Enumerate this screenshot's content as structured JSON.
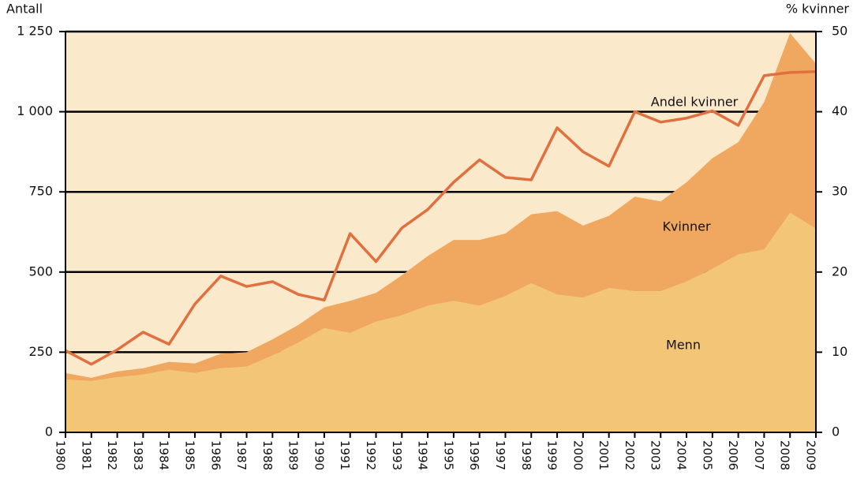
{
  "chart_data": {
    "type": "stacked_area_line",
    "ylabel": "Antall",
    "y2label": "% kvinner",
    "categories": [
      "1980",
      "1981",
      "1982",
      "1983",
      "1984",
      "1985",
      "1986",
      "1987",
      "1988",
      "1989",
      "1990",
      "1991",
      "1992",
      "1993",
      "1994",
      "1995",
      "1996",
      "1997",
      "1998",
      "1999",
      "2000",
      "2001",
      "2002",
      "2003",
      "2004",
      "2005",
      "2006",
      "2007",
      "2008",
      "2009"
    ],
    "series": [
      {
        "name": "Menn",
        "color": "#f3c677",
        "values": [
          165,
          160,
          172,
          180,
          195,
          185,
          200,
          205,
          240,
          280,
          325,
          310,
          345,
          365,
          395,
          410,
          395,
          425,
          465,
          430,
          420,
          450,
          440,
          440,
          470,
          510,
          555,
          570,
          685,
          635
        ]
      },
      {
        "name": "Kvinner",
        "color": "#f0a860",
        "values": [
          20,
          10,
          18,
          20,
          25,
          30,
          45,
          45,
          50,
          55,
          65,
          100,
          90,
          125,
          155,
          190,
          205,
          195,
          215,
          260,
          225,
          225,
          295,
          280,
          310,
          345,
          350,
          460,
          560,
          515
        ]
      },
      {
        "name": "Andel kvinner",
        "color": "#e07040",
        "axis": "y2",
        "values": [
          10.2,
          8.5,
          10.3,
          12.5,
          11,
          16,
          19.5,
          18.2,
          18.8,
          17.2,
          16.5,
          24.8,
          21.3,
          25.5,
          27.8,
          31.2,
          34,
          31.8,
          31.5,
          38,
          35,
          33.2,
          40,
          38.7,
          39.2,
          40.1,
          38.3,
          44.5,
          44.9,
          45
        ]
      }
    ],
    "ylim": [
      0,
      1250
    ],
    "yticks": [
      0,
      250,
      500,
      750,
      {
        "value": 1000,
        "label": "1 000"
      },
      {
        "value": 1250,
        "label": "1 250"
      }
    ],
    "y2lim": [
      0,
      50
    ],
    "y2ticks": [
      0,
      10,
      20,
      30,
      40,
      50
    ],
    "grid": true,
    "plot_background": "#fbe9cc"
  }
}
